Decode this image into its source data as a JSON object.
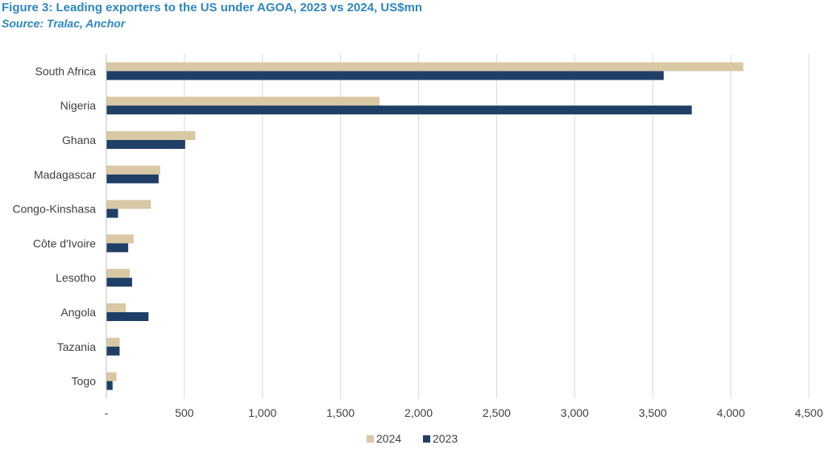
{
  "title": "Figure 3: Leading exporters to the US under AGOA, 2023 vs 2024, US$mn",
  "subtitle": "Source: Tralac, Anchor",
  "colors": {
    "title": "#2e86c1",
    "series_2024": "#d8c8a4",
    "series_2023": "#1f3f66",
    "grid": "#d9d9d9"
  },
  "chart_data": {
    "type": "bar",
    "orientation": "horizontal",
    "categories": [
      "South Africa",
      "Nigeria",
      "Ghana",
      "Madagascar",
      "Congo-Kinshasa",
      "Côte d'Ivoire",
      "Lesotho",
      "Angola",
      "Tazania",
      "Togo"
    ],
    "series": [
      {
        "name": "2024",
        "values": [
          4080,
          1750,
          570,
          345,
          285,
          175,
          150,
          125,
          85,
          65
        ]
      },
      {
        "name": "2023",
        "values": [
          3570,
          3750,
          505,
          335,
          75,
          140,
          165,
          270,
          85,
          40
        ]
      }
    ],
    "xlim": [
      0,
      4500
    ],
    "xticks": [
      "-",
      "500",
      "1,000",
      "1,500",
      "2,000",
      "2,500",
      "3,000",
      "3,500",
      "4,000",
      "4,500"
    ],
    "grid": true,
    "legend_position": "bottom-center"
  }
}
